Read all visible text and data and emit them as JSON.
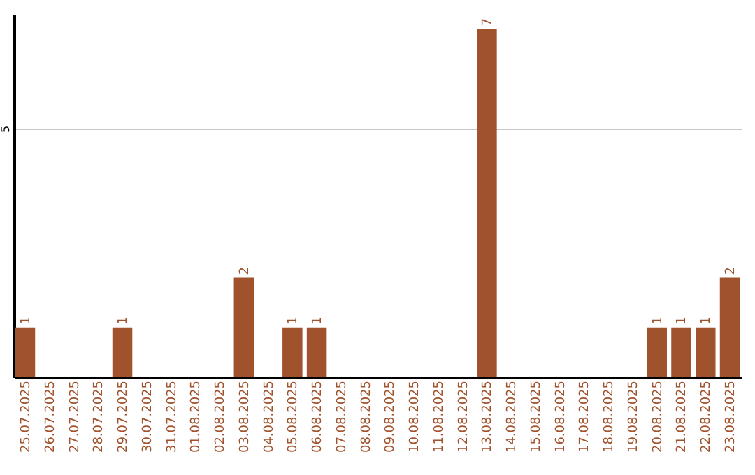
{
  "chart_data": {
    "type": "bar",
    "categories": [
      "25.07.2025",
      "26.07.2025",
      "27.07.2025",
      "28.07.2025",
      "29.07.2025",
      "30.07.2025",
      "31.07.2025",
      "01.08.2025",
      "02.08.2025",
      "03.08.2025",
      "04.08.2025",
      "05.08.2025",
      "06.08.2025",
      "07.08.2025",
      "08.08.2025",
      "09.08.2025",
      "10.08.2025",
      "11.08.2025",
      "12.08.2025",
      "13.08.2025",
      "14.08.2025",
      "15.08.2025",
      "16.08.2025",
      "17.08.2025",
      "18.08.2025",
      "19.08.2025",
      "20.08.2025",
      "21.08.2025",
      "22.08.2025",
      "23.08.2025"
    ],
    "values": [
      1,
      0,
      0,
      0,
      1,
      0,
      0,
      0,
      0,
      2,
      0,
      1,
      1,
      0,
      0,
      0,
      0,
      0,
      0,
      7,
      0,
      0,
      0,
      0,
      0,
      0,
      1,
      1,
      1,
      2
    ],
    "value_labels": [
      "1",
      null,
      null,
      null,
      "1",
      null,
      null,
      null,
      null,
      "2",
      null,
      "1",
      "1",
      null,
      null,
      null,
      null,
      null,
      null,
      "7",
      null,
      null,
      null,
      null,
      null,
      null,
      "1",
      "1",
      "1",
      "2"
    ],
    "color": "#a0522d",
    "ylim": [
      0,
      7.3
    ],
    "yticks": [
      5
    ],
    "grid": "y"
  }
}
